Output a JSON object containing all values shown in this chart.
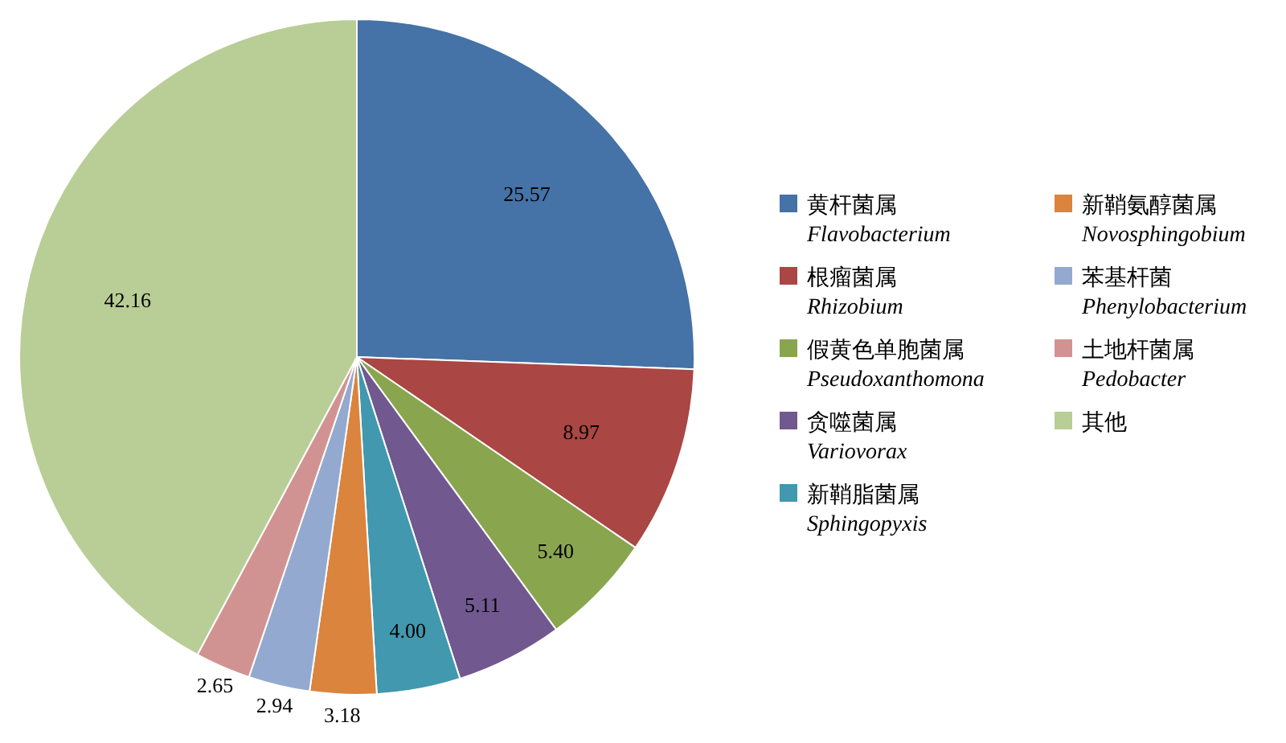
{
  "chart_data": {
    "type": "pie",
    "categories": [
      "黄杆菌属\nFlavobacterium",
      "根瘤菌属\nRhizobium",
      "假黄色单胞菌属\nPseudoxanthomona",
      "贪噬菌属\nVariovorax",
      "新鞘脂菌属\nSphingopyxis",
      "新鞘氨醇菌属\nNovosphingobium",
      "苯基杆菌\nPhenylobacterium",
      "土地杆菌属\nPedobacter",
      "其他"
    ],
    "values": [
      25.57,
      8.97,
      5.4,
      5.11,
      4.0,
      3.18,
      2.94,
      2.65,
      42.16
    ],
    "colors": [
      "#4572a7",
      "#aa4643",
      "#89a54e",
      "#71588f",
      "#4198af",
      "#db843d",
      "#93a9cf",
      "#d19392",
      "#b9cd96"
    ],
    "value_labels": [
      "25.57",
      "8.97",
      "5.40",
      "5.11",
      "4.00",
      "3.18",
      "2.94",
      "2.65",
      "42.16"
    ],
    "legend": "right"
  }
}
